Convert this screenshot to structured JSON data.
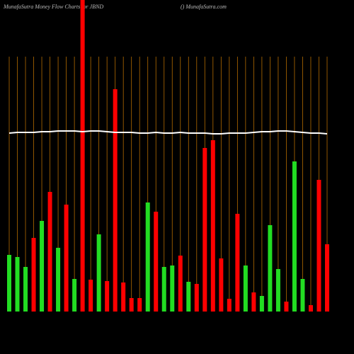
{
  "chart_data": {
    "type": "bar",
    "title": "MunafaSutra  Money Flow Charts for JBND",
    "subtitle": "() MunafaSutra.com",
    "categories": [
      null,
      null,
      null,
      null,
      null,
      null,
      null,
      null,
      null,
      null,
      null,
      null,
      null,
      null,
      null,
      null,
      null,
      null,
      null,
      null,
      null,
      null,
      null,
      null,
      null,
      null,
      null,
      null,
      null,
      null,
      null,
      null,
      null,
      null,
      null,
      null,
      null,
      null,
      null,
      null
    ],
    "values": [
      80,
      77,
      63,
      104,
      128,
      169,
      90,
      151,
      46,
      460,
      45,
      109,
      43,
      314,
      41,
      19,
      19,
      154,
      141,
      63,
      65,
      79,
      42,
      39,
      231,
      242,
      75,
      18,
      138,
      65,
      27,
      22,
      122,
      60,
      14,
      212,
      46,
      9,
      186,
      95
    ],
    "colors": [
      "#22dd22",
      "#22dd22",
      "#22dd22",
      "#ff0000",
      "#22dd22",
      "#ff0000",
      "#22dd22",
      "#ff0000",
      "#22dd22",
      "#ff0000",
      "#ff0000",
      "#22dd22",
      "#ff0000",
      "#ff0000",
      "#ff0000",
      "#ff0000",
      "#ff0000",
      "#22dd22",
      "#ff0000",
      "#22dd22",
      "#22dd22",
      "#ff0000",
      "#22dd22",
      "#ff0000",
      "#ff0000",
      "#ff0000",
      "#ff0000",
      "#ff0000",
      "#ff0000",
      "#22dd22",
      "#ff0000",
      "#22dd22",
      "#22dd22",
      "#22dd22",
      "#ff0000",
      "#22dd22",
      "#22dd22",
      "#ff0000",
      "#ff0000",
      "#ff0000"
    ],
    "line": {
      "color": "#ffffff",
      "values": [
        252,
        253,
        253,
        253,
        254,
        254,
        255,
        255,
        255,
        254,
        255,
        255,
        254,
        253,
        253,
        253,
        252,
        252,
        253,
        252,
        252,
        253,
        252,
        252,
        252,
        251,
        251,
        252,
        252,
        252,
        253,
        254,
        254,
        255,
        255,
        254,
        253,
        252,
        252,
        251
      ]
    },
    "ylim": [
      0,
      440
    ],
    "grid_color": "#b36b00"
  }
}
